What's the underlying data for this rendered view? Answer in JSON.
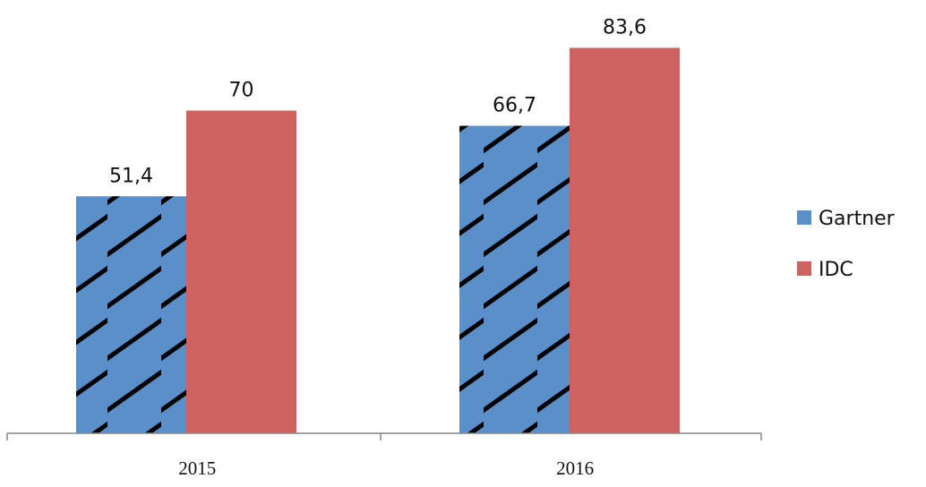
{
  "chart_data": {
    "type": "bar",
    "categories": [
      "2015",
      "2016"
    ],
    "series": [
      {
        "name": "Gartner",
        "values": [
          51.4,
          66.7
        ],
        "labels": [
          "51,4",
          "66,7"
        ],
        "color": "#5b8fc9",
        "pattern": "hatched"
      },
      {
        "name": "IDC",
        "values": [
          70,
          83.6
        ],
        "labels": [
          "70",
          "83,6"
        ],
        "color": "#cd6260",
        "pattern": "solid"
      }
    ],
    "title": "",
    "xlabel": "",
    "ylabel": "",
    "ylim": [
      0,
      90
    ],
    "grid": false,
    "legend_position": "right"
  }
}
